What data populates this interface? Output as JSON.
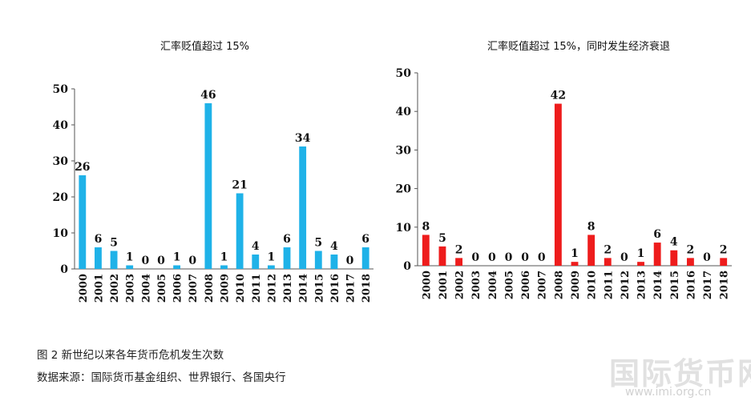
{
  "chart_data": [
    {
      "type": "bar",
      "title": "汇率贬值超过 15%",
      "categories": [
        "2000",
        "2001",
        "2002",
        "2003",
        "2004",
        "2005",
        "2006",
        "2007",
        "2008",
        "2009",
        "2010",
        "2011",
        "2012",
        "2013",
        "2014",
        "2015",
        "2016",
        "2017",
        "2018"
      ],
      "values": [
        26,
        6,
        5,
        1,
        0,
        0,
        1,
        0,
        46,
        1,
        21,
        4,
        1,
        6,
        34,
        5,
        4,
        0,
        6
      ],
      "ylim": [
        0,
        50
      ],
      "yticks": [
        0,
        10,
        20,
        30,
        40,
        50
      ],
      "color": "#1fb2e8",
      "grid": false
    },
    {
      "type": "bar",
      "title": "汇率贬值超过 15%，同时发生经济衰退",
      "categories": [
        "2000",
        "2001",
        "2002",
        "2003",
        "2004",
        "2005",
        "2006",
        "2007",
        "2008",
        "2009",
        "2010",
        "2011",
        "2012",
        "2013",
        "2014",
        "2015",
        "2016",
        "2017",
        "2018"
      ],
      "values": [
        8,
        5,
        2,
        0,
        0,
        0,
        0,
        0,
        42,
        1,
        8,
        2,
        0,
        1,
        6,
        4,
        2,
        0,
        2
      ],
      "ylim": [
        0,
        50
      ],
      "yticks": [
        0,
        10,
        20,
        30,
        40,
        50
      ],
      "color": "#ee1c1c",
      "grid": false
    }
  ],
  "caption": "图 2   新世纪以来各年货币危机发生次数",
  "source": "数据来源：国际货币基金组织、世界银行、各国央行",
  "watermark": {
    "main": "国际货币网",
    "url": "www.imi.org.cn"
  }
}
